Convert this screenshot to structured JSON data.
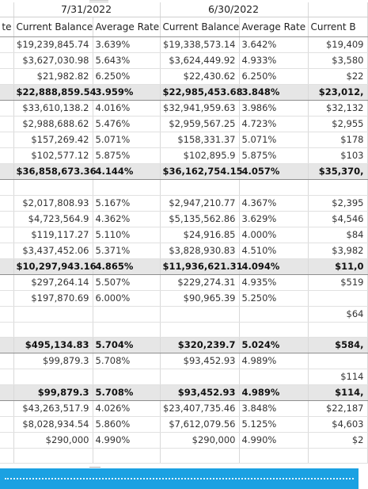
{
  "header": {
    "dates": [
      "7/31/2022",
      "6/30/2022"
    ],
    "columns": {
      "prev_partial": "te",
      "current_balance": "Current Balance",
      "average_rate": "Average Rate",
      "next_partial": "Current B"
    }
  },
  "rows": [
    {
      "kind": "data",
      "c1": "$19,239,845.74",
      "r1": "3.639%",
      "c2": "$19,338,573.14",
      "r2": "3.642%",
      "c3": "$19,409"
    },
    {
      "kind": "data",
      "c1": "$3,627,030.98",
      "r1": "5.643%",
      "c2": "$3,624,449.92",
      "r2": "4.933%",
      "c3": "$3,580"
    },
    {
      "kind": "data",
      "c1": "$21,982.82",
      "r1": "6.250%",
      "c2": "$22,430.62",
      "r2": "6.250%",
      "c3": "$22"
    },
    {
      "kind": "sub",
      "c1": "$22,888,859.54",
      "r1": "3.959%",
      "c2": "$22,985,453.68",
      "r2": "3.848%",
      "c3": "$23,012,"
    },
    {
      "kind": "data",
      "c1": "$33,610,138.2",
      "r1": "4.016%",
      "c2": "$32,941,959.63",
      "r2": "3.986%",
      "c3": "$32,132"
    },
    {
      "kind": "data",
      "c1": "$2,988,688.62",
      "r1": "5.476%",
      "c2": "$2,959,567.25",
      "r2": "4.723%",
      "c3": "$2,955"
    },
    {
      "kind": "data",
      "c1": "$157,269.42",
      "r1": "5.071%",
      "c2": "$158,331.37",
      "r2": "5.071%",
      "c3": "$178"
    },
    {
      "kind": "data",
      "c1": "$102,577.12",
      "r1": "5.875%",
      "c2": "$102,895.9",
      "r2": "5.875%",
      "c3": "$103"
    },
    {
      "kind": "sub",
      "c1": "$36,858,673.36",
      "r1": "4.144%",
      "c2": "$36,162,754.15",
      "r2": "4.057%",
      "c3": "$35,370,"
    },
    {
      "kind": "space",
      "c1": "",
      "r1": "",
      "c2": "",
      "r2": "",
      "c3": ""
    },
    {
      "kind": "data",
      "c1": "$2,017,808.93",
      "r1": "5.167%",
      "c2": "$2,947,210.77",
      "r2": "4.367%",
      "c3": "$2,395"
    },
    {
      "kind": "data",
      "c1": "$4,723,564.9",
      "r1": "4.362%",
      "c2": "$5,135,562.86",
      "r2": "3.629%",
      "c3": "$4,546"
    },
    {
      "kind": "data",
      "c1": "$119,117.27",
      "r1": "5.110%",
      "c2": "$24,916.85",
      "r2": "4.000%",
      "c3": "$84"
    },
    {
      "kind": "data",
      "c1": "$3,437,452.06",
      "r1": "5.371%",
      "c2": "$3,828,930.83",
      "r2": "4.510%",
      "c3": "$3,982"
    },
    {
      "kind": "sub",
      "c1": "$10,297,943.16",
      "r1": "4.865%",
      "c2": "$11,936,621.31",
      "r2": "4.094%",
      "c3": "$11,0"
    },
    {
      "kind": "data",
      "c1": "$297,264.14",
      "r1": "5.507%",
      "c2": "$229,274.31",
      "r2": "4.935%",
      "c3": "$519"
    },
    {
      "kind": "data",
      "c1": "$197,870.69",
      "r1": "6.000%",
      "c2": "$90,965.39",
      "r2": "5.250%",
      "c3": ""
    },
    {
      "kind": "data",
      "c1": "",
      "r1": "",
      "c2": "",
      "r2": "",
      "c3": "$64"
    },
    {
      "kind": "data",
      "c1": "",
      "r1": "",
      "c2": "",
      "r2": "",
      "c3": ""
    },
    {
      "kind": "sub",
      "c1": "$495,134.83",
      "r1": "5.704%",
      "c2": "$320,239.7",
      "r2": "5.024%",
      "c3": "$584,"
    },
    {
      "kind": "data",
      "c1": "$99,879.3",
      "r1": "5.708%",
      "c2": "$93,452.93",
      "r2": "4.989%",
      "c3": ""
    },
    {
      "kind": "data",
      "c1": "",
      "r1": "",
      "c2": "",
      "r2": "",
      "c3": "$114"
    },
    {
      "kind": "sub",
      "c1": "$99,879.3",
      "r1": "5.708%",
      "c2": "$93,452.93",
      "r2": "4.989%",
      "c3": "$114,"
    },
    {
      "kind": "data",
      "c1": "$43,263,517.9",
      "r1": "4.026%",
      "c2": "$23,407,735.46",
      "r2": "3.848%",
      "c3": "$22,187"
    },
    {
      "kind": "data",
      "c1": "$8,028,934.54",
      "r1": "5.860%",
      "c2": "$7,612,079.56",
      "r2": "5.125%",
      "c3": "$4,603"
    },
    {
      "kind": "data",
      "c1": "$290,000",
      "r1": "4.990%",
      "c2": "$290,000",
      "r2": "4.990%",
      "c3": "$2"
    },
    {
      "kind": "data",
      "c1": "",
      "r1": "",
      "c2": "",
      "r2": "",
      "c3": ""
    }
  ],
  "colors": {
    "accent_bar": "#1ba1e2",
    "subtotal_bg": "#e6e6e6"
  }
}
